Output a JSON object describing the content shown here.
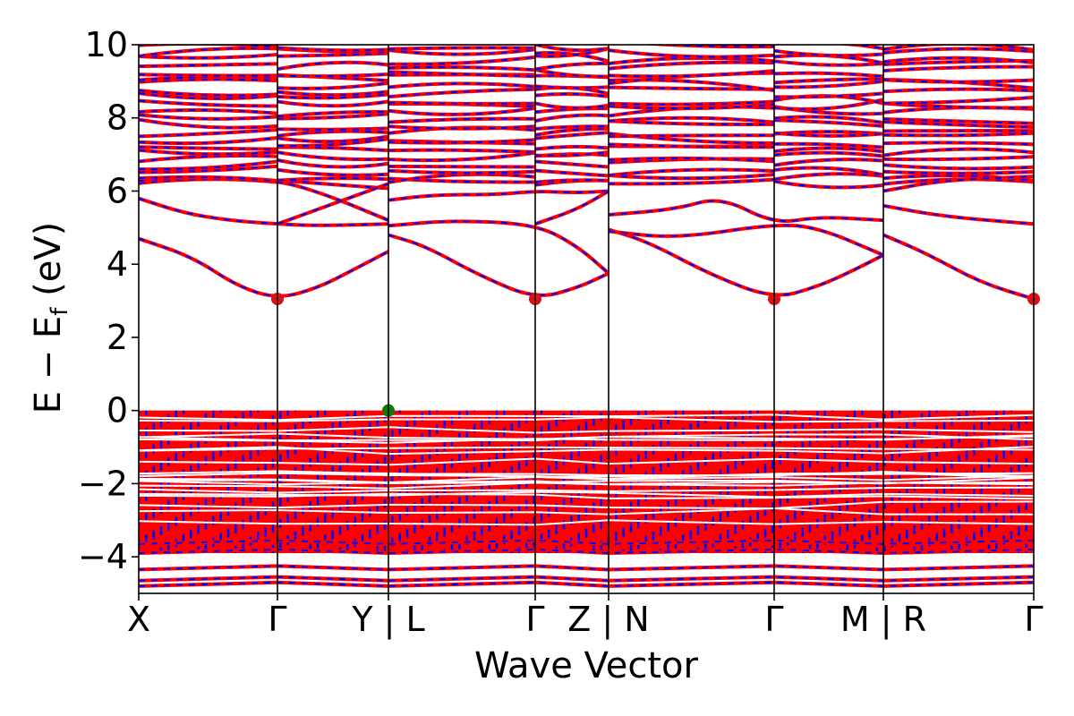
{
  "chart_data": {
    "type": "line",
    "title": "",
    "xlabel": "Wave Vector",
    "ylabel": "E − E",
    "ylabel_sub": "f",
    "ylabel_unit": " (eV)",
    "ylim": [
      -5,
      10
    ],
    "yticks": [
      10,
      8,
      6,
      4,
      2,
      0,
      -2,
      -4
    ],
    "ytick_labels": [
      "10",
      "8",
      "6",
      "4",
      "2",
      "0",
      "−2",
      "−4"
    ],
    "xlim": [
      0,
      1
    ],
    "xticks": [
      {
        "label": "X",
        "x": 0.0
      },
      {
        "label": "Γ",
        "x": 0.155
      },
      {
        "label": "Y | L",
        "x": 0.279
      },
      {
        "label": "Γ",
        "x": 0.443
      },
      {
        "label": "Z | N",
        "x": 0.525
      },
      {
        "label": "Γ",
        "x": 0.71
      },
      {
        "label": "M | R",
        "x": 0.832
      },
      {
        "label": "Γ",
        "x": 1.0
      }
    ],
    "segment_boundaries": [
      0.155,
      0.279,
      0.443,
      0.525,
      0.71,
      0.832
    ],
    "series": [
      {
        "name": "",
        "color": "#ff0000",
        "style": "solid"
      },
      {
        "name": "",
        "color": "#0000ff",
        "style": "dashed"
      }
    ],
    "markers": [
      {
        "x": 0.155,
        "y": 3.05,
        "color": "#e01010",
        "note": "CBM"
      },
      {
        "x": 0.443,
        "y": 3.05,
        "color": "#e01010",
        "note": "CBM"
      },
      {
        "x": 0.71,
        "y": 3.05,
        "color": "#e01010",
        "note": "CBM"
      },
      {
        "x": 1.0,
        "y": 3.05,
        "color": "#e01010",
        "note": "CBM"
      },
      {
        "x": 0.279,
        "y": 0.0,
        "color": "#0a7a0a",
        "note": "VBM"
      }
    ],
    "conduction_curves": [
      [
        [
          0.0,
          4.7
        ],
        [
          0.06,
          4.2
        ],
        [
          0.11,
          3.4
        ],
        [
          0.155,
          3.05
        ],
        [
          0.2,
          3.35
        ],
        [
          0.24,
          3.85
        ],
        [
          0.279,
          4.35
        ]
      ],
      [
        [
          0.279,
          4.8
        ],
        [
          0.32,
          4.5
        ],
        [
          0.38,
          3.7
        ],
        [
          0.443,
          3.05
        ],
        [
          0.49,
          3.35
        ],
        [
          0.525,
          3.75
        ]
      ],
      [
        [
          0.525,
          4.95
        ],
        [
          0.57,
          4.6
        ],
        [
          0.64,
          3.7
        ],
        [
          0.71,
          3.05
        ],
        [
          0.76,
          3.4
        ],
        [
          0.8,
          3.85
        ],
        [
          0.832,
          4.25
        ]
      ],
      [
        [
          0.832,
          4.8
        ],
        [
          0.88,
          4.3
        ],
        [
          0.94,
          3.5
        ],
        [
          1.0,
          3.05
        ]
      ],
      [
        [
          0.0,
          5.8
        ],
        [
          0.05,
          5.4
        ],
        [
          0.1,
          5.2
        ],
        [
          0.155,
          5.1
        ],
        [
          0.2,
          5.05
        ],
        [
          0.279,
          5.1
        ]
      ],
      [
        [
          0.155,
          5.1
        ],
        [
          0.2,
          5.5
        ],
        [
          0.279,
          6.2
        ]
      ],
      [
        [
          0.0,
          6.35
        ],
        [
          0.07,
          6.4
        ],
        [
          0.155,
          6.3
        ],
        [
          0.21,
          5.9
        ],
        [
          0.279,
          5.2
        ]
      ],
      [
        [
          0.279,
          5.75
        ],
        [
          0.33,
          5.9
        ],
        [
          0.4,
          5.9
        ],
        [
          0.443,
          6.0
        ],
        [
          0.49,
          5.95
        ],
        [
          0.525,
          6.0
        ]
      ],
      [
        [
          0.279,
          5.05
        ],
        [
          0.35,
          5.2
        ],
        [
          0.443,
          5.1
        ],
        [
          0.49,
          4.5
        ],
        [
          0.525,
          3.75
        ]
      ],
      [
        [
          0.443,
          5.1
        ],
        [
          0.49,
          5.5
        ],
        [
          0.525,
          6.0
        ]
      ],
      [
        [
          0.525,
          5.35
        ],
        [
          0.6,
          5.5
        ],
        [
          0.65,
          5.85
        ],
        [
          0.71,
          5.1
        ],
        [
          0.76,
          5.3
        ],
        [
          0.832,
          5.2
        ]
      ],
      [
        [
          0.525,
          4.9
        ],
        [
          0.6,
          4.7
        ],
        [
          0.71,
          5.1
        ],
        [
          0.76,
          5.0
        ],
        [
          0.832,
          4.25
        ]
      ],
      [
        [
          0.832,
          5.6
        ],
        [
          0.9,
          5.3
        ],
        [
          1.0,
          5.1
        ]
      ],
      [
        [
          0.832,
          6.0
        ],
        [
          0.9,
          6.3
        ],
        [
          1.0,
          6.4
        ]
      ]
    ],
    "valence_band_range": [
      -3.9,
      0.0
    ],
    "lower_bands": [
      -3.85,
      -3.6,
      -4.3,
      -4.6,
      -4.75
    ]
  }
}
